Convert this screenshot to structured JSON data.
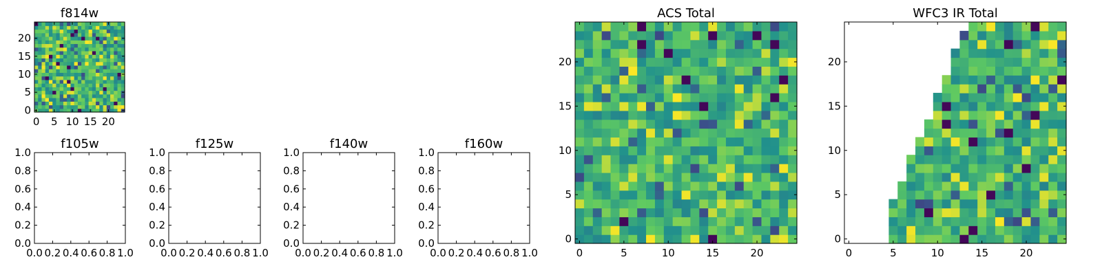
{
  "colors": {
    "viridis": [
      "#440154",
      "#3b528b",
      "#21918c",
      "#5ec962",
      "#fde725"
    ]
  },
  "chart_data": [
    {
      "id": "f814w",
      "type": "heatmap",
      "title": "f814w",
      "empty": false,
      "xlim": [
        -0.5,
        24.5
      ],
      "ylim": [
        -0.5,
        24.5
      ],
      "xticks": [
        0,
        5,
        10,
        15,
        20
      ],
      "yticks": [
        0,
        5,
        10,
        15,
        20
      ],
      "xtick_labels": [
        "0",
        "5",
        "10",
        "15",
        "20"
      ],
      "ytick_labels": [
        "0",
        "5",
        "10",
        "15",
        "20"
      ],
      "grid": {
        "rows": 25,
        "cols": 25,
        "seed": 17,
        "vmin": 0,
        "vmax": 1,
        "pattern": "random"
      }
    },
    {
      "id": "f105w",
      "type": "heatmap",
      "title": "f105w",
      "empty": true,
      "xlim": [
        0,
        1
      ],
      "ylim": [
        0,
        1
      ],
      "xticks": [
        0,
        0.2,
        0.4,
        0.6,
        0.8,
        1.0
      ],
      "yticks": [
        0,
        0.2,
        0.4,
        0.6,
        0.8,
        1.0
      ],
      "xtick_labels": [
        "0.0",
        "0.2",
        "0.4",
        "0.6",
        "0.8",
        "1.0"
      ],
      "ytick_labels": [
        "0.0",
        "0.2",
        "0.4",
        "0.6",
        "0.8",
        "1.0"
      ]
    },
    {
      "id": "f125w",
      "type": "heatmap",
      "title": "f125w",
      "empty": true,
      "xlim": [
        0,
        1
      ],
      "ylim": [
        0,
        1
      ],
      "xticks": [
        0,
        0.2,
        0.4,
        0.6,
        0.8,
        1.0
      ],
      "yticks": [
        0,
        0.2,
        0.4,
        0.6,
        0.8,
        1.0
      ],
      "xtick_labels": [
        "0.0",
        "0.2",
        "0.4",
        "0.6",
        "0.8",
        "1.0"
      ],
      "ytick_labels": [
        "0.0",
        "0.2",
        "0.4",
        "0.6",
        "0.8",
        "1.0"
      ]
    },
    {
      "id": "f140w",
      "type": "heatmap",
      "title": "f140w",
      "empty": true,
      "xlim": [
        0,
        1
      ],
      "ylim": [
        0,
        1
      ],
      "xticks": [
        0,
        0.2,
        0.4,
        0.6,
        0.8,
        1.0
      ],
      "yticks": [
        0,
        0.2,
        0.4,
        0.6,
        0.8,
        1.0
      ],
      "xtick_labels": [
        "0.0",
        "0.2",
        "0.4",
        "0.6",
        "0.8",
        "1.0"
      ],
      "ytick_labels": [
        "0.0",
        "0.2",
        "0.4",
        "0.6",
        "0.8",
        "1.0"
      ]
    },
    {
      "id": "f160w",
      "type": "heatmap",
      "title": "f160w",
      "empty": true,
      "xlim": [
        0,
        1
      ],
      "ylim": [
        0,
        1
      ],
      "xticks": [
        0,
        0.2,
        0.4,
        0.6,
        0.8,
        1.0
      ],
      "yticks": [
        0,
        0.2,
        0.4,
        0.6,
        0.8,
        1.0
      ],
      "xtick_labels": [
        "0.0",
        "0.2",
        "0.4",
        "0.6",
        "0.8",
        "1.0"
      ],
      "ytick_labels": [
        "0.0",
        "0.2",
        "0.4",
        "0.6",
        "0.8",
        "1.0"
      ]
    },
    {
      "id": "acs-total",
      "type": "heatmap",
      "title": "ACS Total",
      "empty": false,
      "xlim": [
        -0.5,
        24.5
      ],
      "ylim": [
        -0.5,
        24.5
      ],
      "xticks": [
        0,
        5,
        10,
        15,
        20
      ],
      "yticks": [
        0,
        5,
        10,
        15,
        20
      ],
      "xtick_labels": [
        "0",
        "5",
        "10",
        "15",
        "20"
      ],
      "ytick_labels": [
        "0",
        "5",
        "10",
        "15",
        "20"
      ],
      "grid": {
        "rows": 25,
        "cols": 25,
        "seed": 42,
        "vmin": 0,
        "vmax": 1,
        "pattern": "random"
      }
    },
    {
      "id": "wfc3-ir-total",
      "type": "heatmap",
      "title": "WFC3 IR Total",
      "empty": false,
      "xlim": [
        -0.5,
        24.5
      ],
      "ylim": [
        -0.5,
        24.5
      ],
      "xticks": [
        0,
        5,
        10,
        15,
        20
      ],
      "yticks": [
        0,
        5,
        10,
        15,
        20
      ],
      "xtick_labels": [
        "0",
        "5",
        "10",
        "15",
        "20"
      ],
      "ytick_labels": [
        "0",
        "5",
        "10",
        "15",
        "20"
      ],
      "grid": {
        "rows": 25,
        "cols": 25,
        "seed": 99,
        "vmin": 0,
        "vmax": 1,
        "pattern": "masked-left-edge",
        "first_valid_column_by_row": [
          5,
          5,
          5,
          5,
          5,
          6,
          6,
          7,
          7,
          7,
          8,
          8,
          9,
          9,
          10,
          10,
          10,
          11,
          11,
          12,
          12,
          12,
          13,
          13,
          14
        ]
      }
    }
  ]
}
